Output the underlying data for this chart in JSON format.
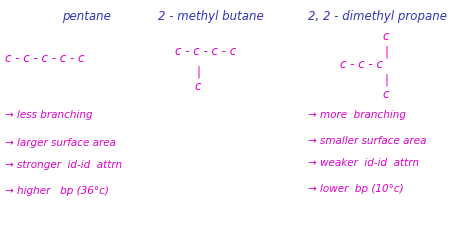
{
  "background_color": "#ffffff",
  "text_color_magenta": "#dd00cc",
  "text_color_blue": "#3333bb",
  "fs_title": 8.5,
  "fs_mol": 8.5,
  "fs_body": 7.5,
  "pentane_title": "pentane",
  "pentane_mol": "c - c - c - c - c",
  "methylbutane_title": "2 - methyl butane",
  "methylbutane_main": "c - c - c - c",
  "methylbutane_bar": "|",
  "methylbutane_branch": "c",
  "dimethyl_title": "2, 2 - dimethyl propane",
  "dimethyl_topc": "c",
  "dimethyl_topbar": "|",
  "dimethyl_main": "c - c - c",
  "dimethyl_botbar": "|",
  "dimethyl_botc": "c",
  "left_bullets": [
    "→ less branching",
    "→ larger surface area",
    "→ stronger  id-id  attrn",
    "→ higher   bp (36°c)"
  ],
  "right_bullets": [
    "→ more  branching",
    "→ smaller surface area",
    "→ weaker  id-id  attrn",
    "→ lower  bp (10°c)"
  ]
}
